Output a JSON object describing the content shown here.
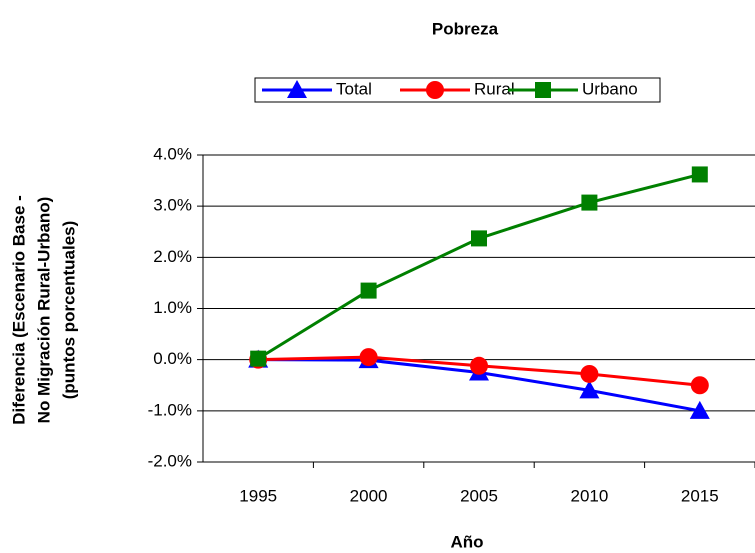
{
  "chart_data": {
    "type": "line",
    "title": "Pobreza",
    "ylabel": [
      "Diferencia (Escenario Base -",
      "No Migración Rural-Urbano)",
      "(puntos porcentuales)"
    ],
    "xlabel": "Año",
    "categories": [
      "1995",
      "2000",
      "2005",
      "2010",
      "2015"
    ],
    "series": [
      {
        "name": "Total",
        "color": "#0000ff",
        "marker": "triangle",
        "values": [
          0.0,
          -0.01,
          -0.25,
          -0.6,
          -1.0
        ]
      },
      {
        "name": "Rural",
        "color": "#ff0000",
        "marker": "circle",
        "values": [
          0.0,
          0.05,
          -0.12,
          -0.28,
          -0.5
        ]
      },
      {
        "name": "Urbano",
        "color": "#008000",
        "marker": "square",
        "values": [
          0.02,
          1.35,
          2.37,
          3.07,
          3.62
        ]
      }
    ],
    "ylim": [
      -2,
      4
    ],
    "yticks": [
      {
        "value": -2,
        "label": "-2.0%"
      },
      {
        "value": -1,
        "label": "-1.0%"
      },
      {
        "value": 0,
        "label": "0.0%"
      },
      {
        "value": 1,
        "label": "1.0%"
      },
      {
        "value": 2,
        "label": "2.0%"
      },
      {
        "value": 3,
        "label": "3.0%"
      },
      {
        "value": 4,
        "label": "4.0%"
      }
    ],
    "grid": true,
    "legend": "top"
  }
}
